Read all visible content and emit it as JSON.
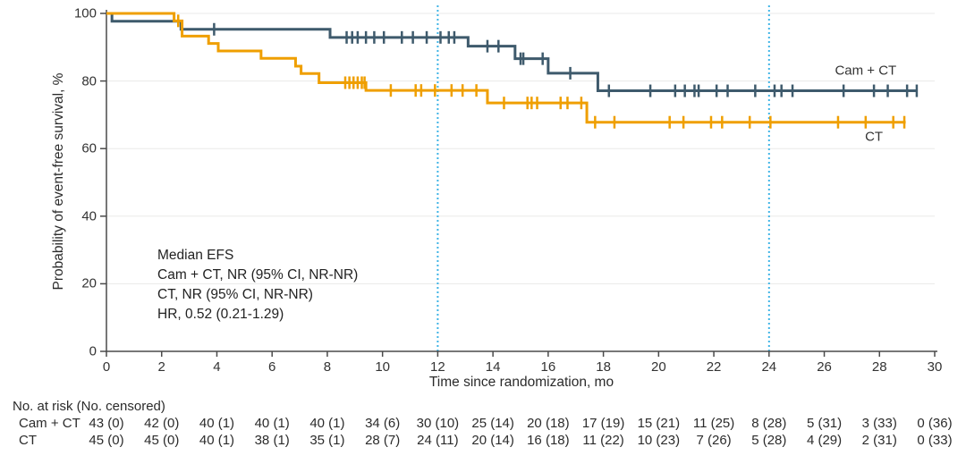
{
  "chart_data": {
    "type": "line",
    "subtype": "kaplan_meier_step",
    "title": "",
    "xlabel": "Time since randomization, mo",
    "ylabel": "Probability of event-free survival, %",
    "xlim": [
      0,
      30
    ],
    "ylim": [
      0,
      100
    ],
    "xticks": [
      0,
      2,
      4,
      6,
      8,
      10,
      12,
      14,
      16,
      18,
      20,
      22,
      24,
      26,
      28,
      30
    ],
    "yticks": [
      0,
      20,
      40,
      60,
      80,
      100
    ],
    "grid": "horizontal-faint",
    "legend_position": "curve-end-labels",
    "reference_lines_x": [
      12,
      24
    ],
    "annotation_lines": [
      "Median EFS",
      "Cam + CT, NR (95% CI, NR-NR)",
      "CT, NR (95% CI, NR-NR)",
      "HR, 0.52 (0.21-1.29)"
    ],
    "colors": {
      "grid": "#eaeae8",
      "axis": "#4a4a4a",
      "reference": "#3fb4e6",
      "text": "#333333"
    },
    "series": [
      {
        "id": "cam-ct",
        "label": "Cam + CT",
        "color": "#3e5a6c",
        "label_color": "#333333",
        "points": [
          [
            0,
            100
          ],
          [
            0.2,
            97.7
          ],
          [
            2.7,
            95.3
          ],
          [
            8.1,
            92.9
          ],
          [
            13.1,
            90.3
          ],
          [
            14.8,
            86.6
          ],
          [
            16,
            82.3
          ],
          [
            17.8,
            77.1
          ]
        ],
        "end_time": 29.35,
        "censor_times": [
          3.9,
          8.7,
          8.9,
          9.1,
          9.4,
          9.7,
          10.05,
          10.7,
          11.1,
          11.6,
          12.1,
          12.4,
          12.6,
          13.8,
          14.2,
          15,
          15.1,
          15.8,
          16.8,
          18.2,
          19.7,
          20.6,
          20.95,
          21.3,
          21.45,
          22.1,
          22.5,
          23.5,
          24.2,
          24.45,
          24.85,
          26.7,
          27.8,
          28.3,
          29,
          29.35
        ],
        "label_at": [
          27.5,
          83
        ]
      },
      {
        "id": "ct",
        "label": "CT",
        "color": "#ef9f00",
        "label_color": "#333333",
        "points": [
          [
            0,
            100
          ],
          [
            2.45,
            97.8
          ],
          [
            2.74,
            93.3
          ],
          [
            3.7,
            91.1
          ],
          [
            4.05,
            88.9
          ],
          [
            5.6,
            86.7
          ],
          [
            6.85,
            84.4
          ],
          [
            7.05,
            82.2
          ],
          [
            7.7,
            79.5
          ],
          [
            9.4,
            77.2
          ],
          [
            13.8,
            73.5
          ],
          [
            17.4,
            67.8
          ]
        ],
        "end_time": 28.95,
        "censor_times": [
          2.6,
          8.65,
          8.8,
          8.95,
          9.1,
          9.25,
          9.35,
          10.3,
          11.2,
          11.4,
          11.9,
          12.5,
          12.9,
          13.4,
          14.4,
          15.25,
          15.4,
          15.6,
          16.45,
          16.7,
          17.2,
          17.7,
          18.4,
          20.4,
          20.9,
          21.9,
          22.3,
          23.3,
          24.05,
          26.5,
          27.5,
          28.5,
          28.9
        ],
        "label_at": [
          27.8,
          63.4
        ]
      }
    ]
  },
  "risk_table": {
    "header": "No. at risk (No. censored)",
    "times": [
      0,
      2,
      4,
      6,
      8,
      10,
      12,
      14,
      16,
      18,
      20,
      22,
      24,
      26,
      28,
      30
    ],
    "rows": [
      {
        "label": "Cam + CT",
        "values": [
          "43 (0)",
          "42 (0)",
          "40 (1)",
          "40 (1)",
          "40 (1)",
          "34 (6)",
          "30 (10)",
          "25 (14)",
          "20 (18)",
          "17 (19)",
          "15 (21)",
          "11 (25)",
          "8 (28)",
          "5 (31)",
          "3 (33)",
          "0 (36)"
        ]
      },
      {
        "label": "CT",
        "values": [
          "45 (0)",
          "45 (0)",
          "40 (1)",
          "38 (1)",
          "35 (1)",
          "28 (7)",
          "24 (11)",
          "20 (14)",
          "16 (18)",
          "11 (22)",
          "10 (23)",
          "7 (26)",
          "5 (28)",
          "4 (29)",
          "2 (31)",
          "0 (33)"
        ]
      }
    ]
  }
}
